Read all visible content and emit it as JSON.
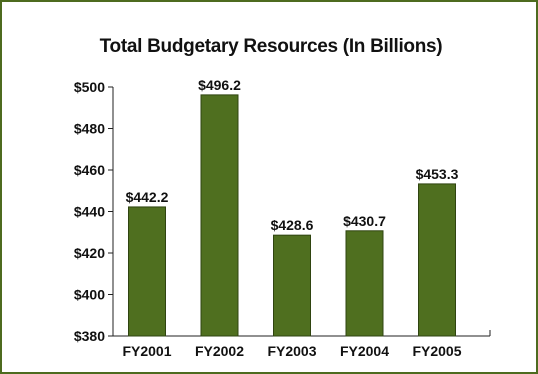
{
  "colors": {
    "bar": "#4f6f1f",
    "bar_edge": "#2f4410",
    "frame": "#4d6b1f",
    "axis": "#222222"
  },
  "chart_data": {
    "type": "bar",
    "title": "Total Budgetary Resources (In Billions)",
    "xlabel": "",
    "ylabel": "",
    "categories": [
      "FY2001",
      "FY2002",
      "FY2003",
      "FY2004",
      "FY2005"
    ],
    "values": [
      442.2,
      496.2,
      428.6,
      430.7,
      453.3
    ],
    "data_labels": [
      "$442.2",
      "$496.2",
      "$428.6",
      "$430.7",
      "$453.3"
    ],
    "ylim": [
      380,
      500
    ],
    "yticks": [
      380,
      400,
      420,
      440,
      460,
      480,
      500
    ],
    "ytick_labels": [
      "$380",
      "$400",
      "$420",
      "$440",
      "$460",
      "$480",
      "$500"
    ],
    "grid": false,
    "legend": "none"
  }
}
